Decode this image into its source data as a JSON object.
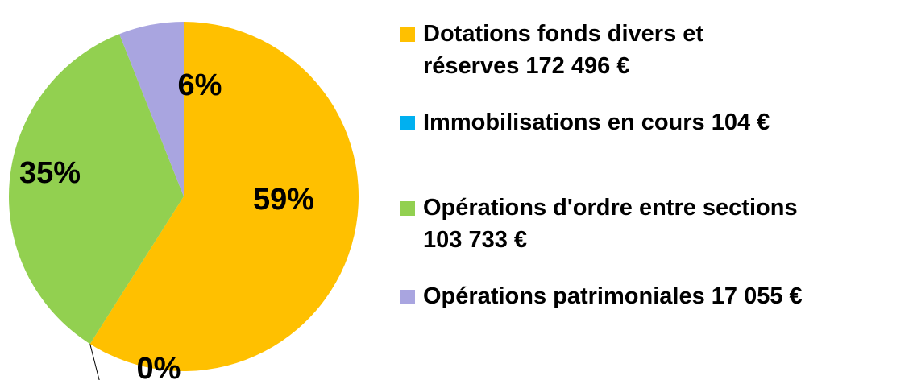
{
  "chart_data": {
    "type": "pie",
    "categories": [
      "Dotations fonds divers et\nréserves  172 496 €",
      "Immobilisations en cours 104 €",
      "Opérations d'ordre entre sections\n103 733 €",
      "Opérations patrimoniales 17 055 €"
    ],
    "values": [
      59,
      0,
      35,
      6
    ],
    "value_labels": [
      "59%",
      "0%",
      "35%",
      "6%"
    ],
    "colors": [
      "#FFC000",
      "#00B0F0",
      "#92D050",
      "#A9A5E0"
    ],
    "legend": "right"
  }
}
